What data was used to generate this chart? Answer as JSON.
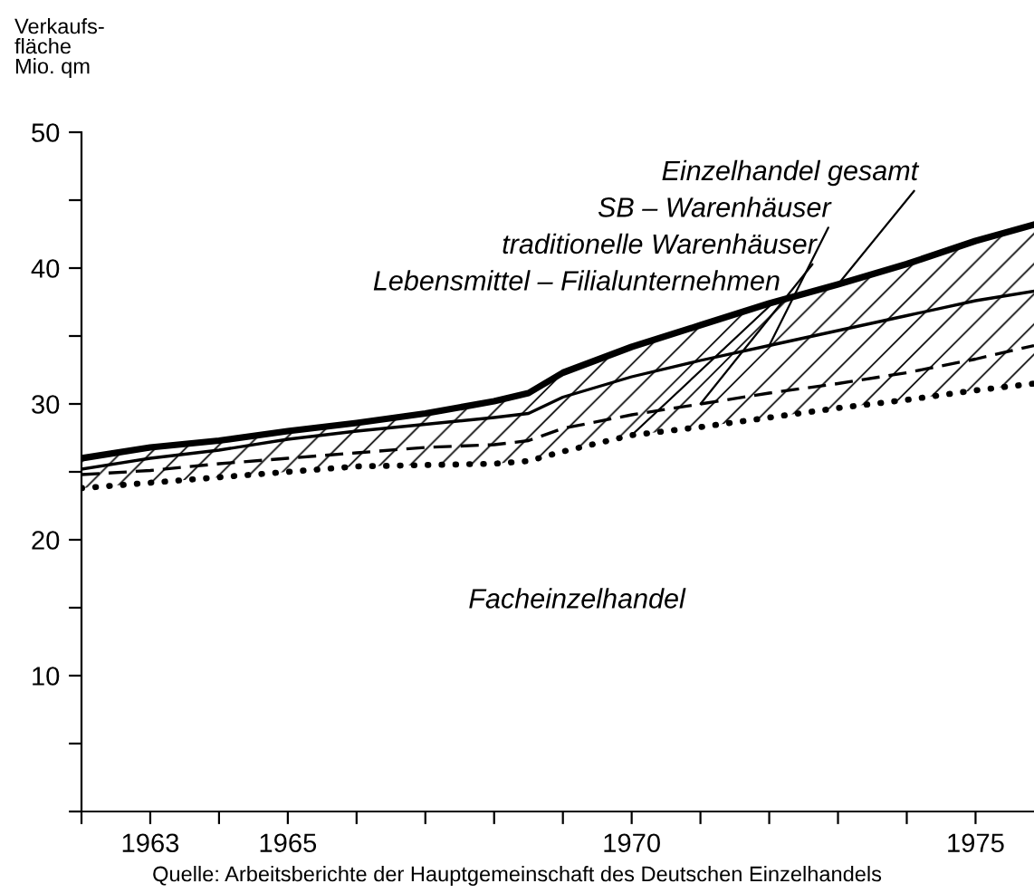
{
  "chart_data": {
    "type": "line",
    "ylabel": "Verkaufs-\nfläche\nMio. qm",
    "x": [
      1962,
      1963,
      1964,
      1965,
      1966,
      1967,
      1968,
      1968.5,
      1969,
      1970,
      1971,
      1972,
      1973,
      1974,
      1975,
      1975.85
    ],
    "series": [
      {
        "color": "#000000",
        "line_style": "solid",
        "values": [
          26,
          26.8,
          27.3,
          28,
          28.6,
          29.3,
          30.2,
          30.8,
          32.3,
          34.2,
          35.8,
          37.4,
          38.8,
          40.3,
          42,
          43.2
        ]
      },
      {
        "color": "#000000",
        "line_style": "solid",
        "values": [
          25.2,
          26,
          26.6,
          27.4,
          28,
          28.5,
          29,
          29.3,
          30.5,
          32,
          33.2,
          34.3,
          35.4,
          36.5,
          37.6,
          38.3
        ]
      },
      {
        "color": "#000000",
        "line_style": "dashed",
        "values": [
          24.8,
          25.1,
          25.6,
          26,
          26.4,
          26.8,
          27,
          27.3,
          28.2,
          29.2,
          30,
          30.8,
          31.5,
          32.3,
          33.3,
          34.3
        ]
      },
      {
        "color": "#000000",
        "line_style": "dotted",
        "values": [
          23.8,
          24.2,
          24.6,
          25,
          25.4,
          25.5,
          25.6,
          25.8,
          26.5,
          27.7,
          28.3,
          29,
          29.7,
          30.3,
          31,
          31.5
        ]
      }
    ],
    "xlim": [
      1962,
      1975.85
    ],
    "ylim": [
      0,
      50
    ],
    "xticks": [
      {
        "value": 1962,
        "label": null
      },
      1963,
      {
        "value": 1964,
        "label": null
      },
      1965,
      {
        "value": 1966,
        "label": null
      },
      {
        "value": 1967,
        "label": null
      },
      {
        "value": 1968,
        "label": null
      },
      {
        "value": 1969,
        "label": null
      },
      1970,
      {
        "value": 1971,
        "label": null
      },
      {
        "value": 1972,
        "label": null
      },
      {
        "value": 1973,
        "label": null
      },
      {
        "value": 1974,
        "label": null
      },
      1975
    ],
    "yticks": [
      {
        "value": 0,
        "label": null
      },
      {
        "value": 5,
        "label": null
      },
      10,
      {
        "value": 15,
        "label": null
      },
      20,
      {
        "value": 25,
        "label": null
      },
      30,
      {
        "value": 35,
        "label": null
      },
      40,
      {
        "value": 45,
        "label": null
      },
      50
    ],
    "grid": false,
    "legend": false,
    "marker": "none",
    "annotations": [
      {
        "text": "Einzelhandel gesamt",
        "x": 1973,
        "y": 38.8
      },
      {
        "text": "SB – Warenhäuser",
        "x": 1972,
        "y": 34.3
      },
      {
        "text": "traditionelle Warenhäuser",
        "x": 1971,
        "y": 30
      },
      {
        "text": "Lebensmittel – Filialunternehmen",
        "x": 1970,
        "y": 27.7
      },
      "Facheinzelhandel",
      "Quelle: Arbeitsberichte der Hauptgemeinschaft des Deutschen Einzelhandels"
    ]
  }
}
